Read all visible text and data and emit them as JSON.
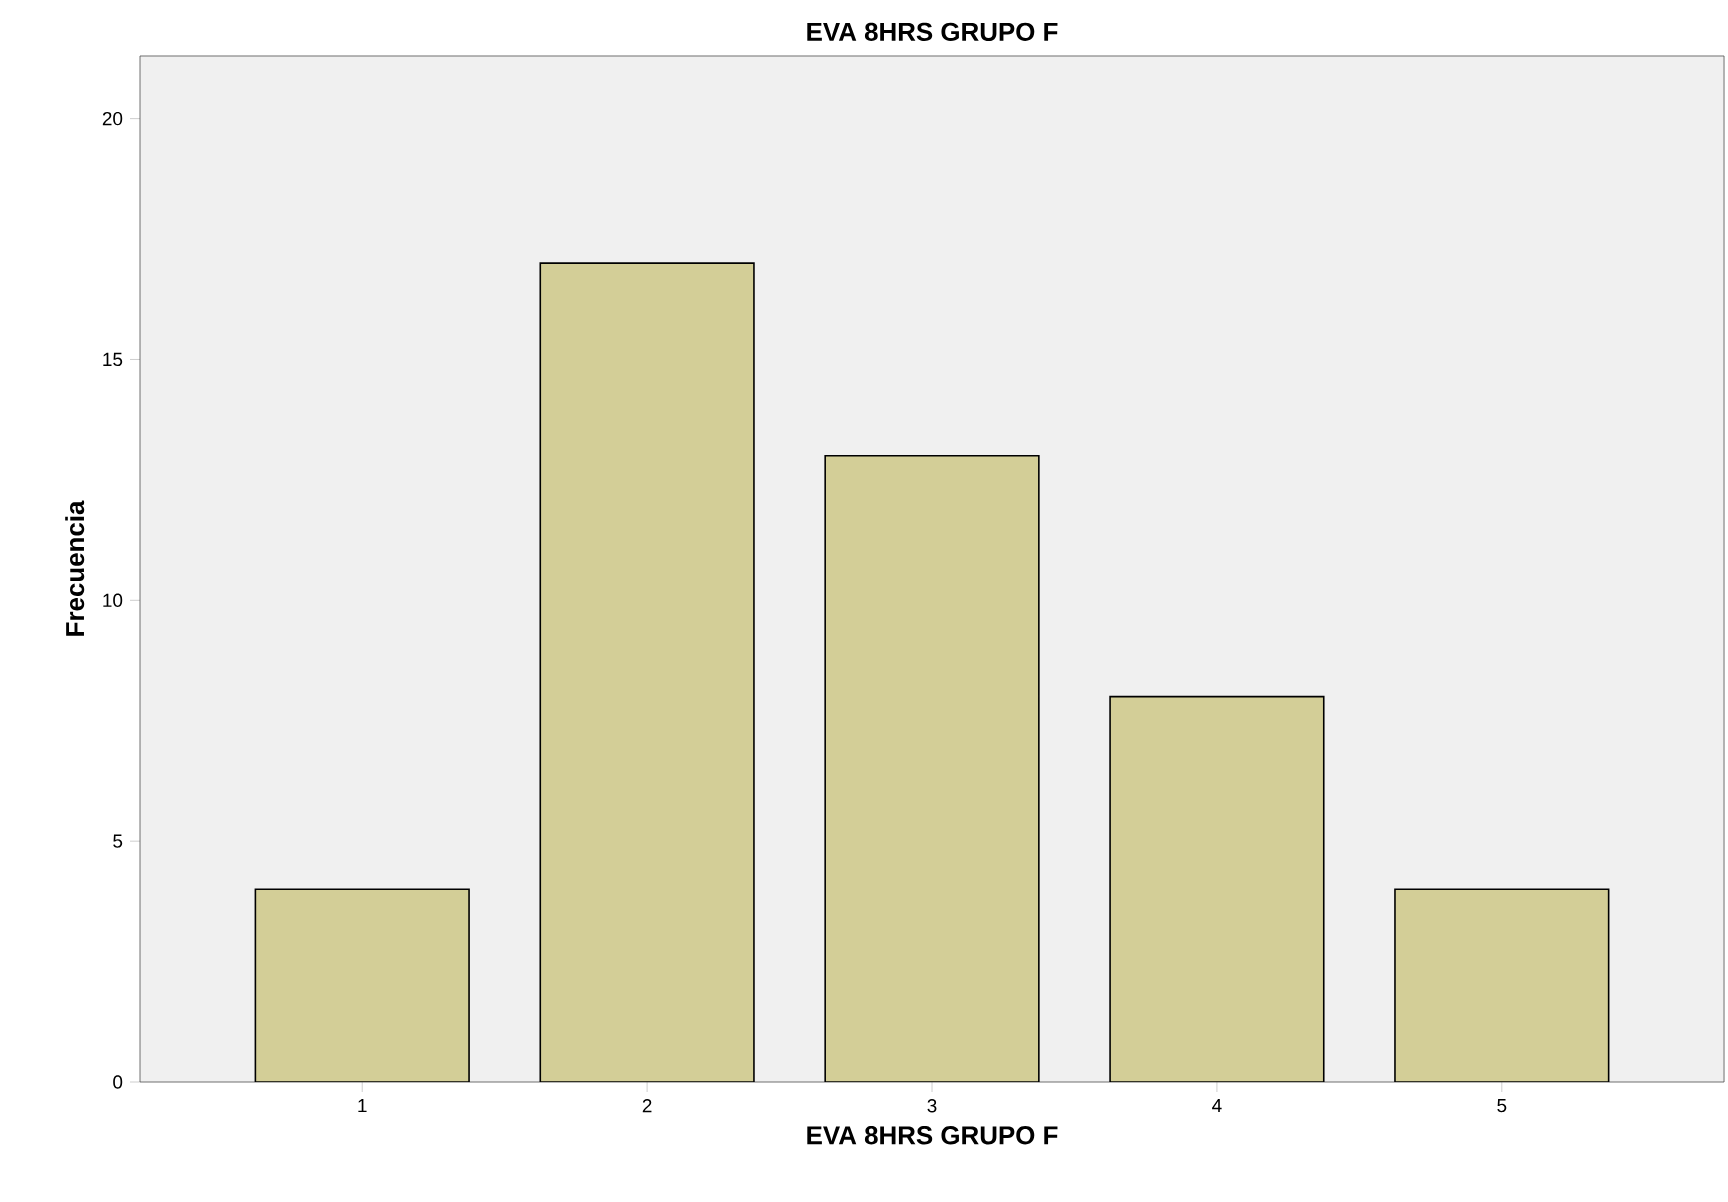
{
  "chart_data": {
    "type": "bar",
    "title": "EVA 8HRS GRUPO F",
    "xlabel": "EVA 8HRS GRUPO F",
    "ylabel": "Frecuencia",
    "categories": [
      "1",
      "2",
      "3",
      "4",
      "5"
    ],
    "values": [
      4,
      17,
      13,
      8,
      4
    ],
    "color": "#d3ce97",
    "ylim": [
      0,
      21.3
    ],
    "yticks": [
      0,
      5,
      10,
      15,
      20
    ],
    "grid": false
  }
}
